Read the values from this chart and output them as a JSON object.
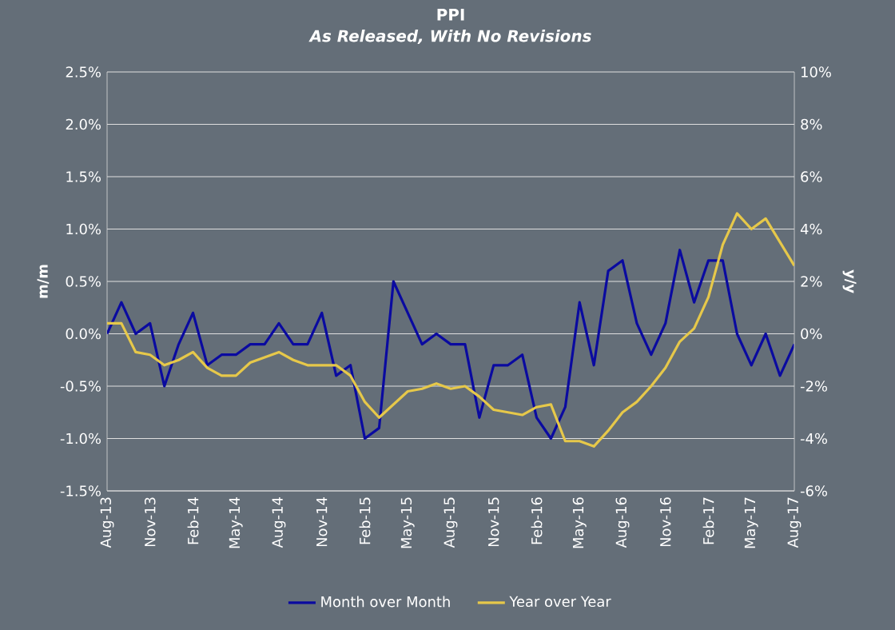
{
  "chart_data": {
    "type": "line",
    "title": "PPI",
    "subtitle": "*As Released, With No Revisions*",
    "ylabel": "m/m",
    "y2label": "y/y",
    "categories": [
      "Aug-13",
      null,
      null,
      "Nov-13",
      null,
      null,
      "Feb-14",
      null,
      null,
      "May-14",
      null,
      null,
      "Aug-14",
      null,
      null,
      "Nov-14",
      null,
      null,
      "Feb-15",
      null,
      null,
      "May-15",
      null,
      null,
      "Aug-15",
      null,
      null,
      "Nov-15",
      null,
      null,
      "Feb-16",
      null,
      null,
      "May-16",
      null,
      null,
      "Aug-16",
      null,
      null,
      "Nov-16",
      null,
      null,
      "Feb-17",
      null,
      null,
      "May-17",
      null,
      null,
      "Aug-17"
    ],
    "series": [
      {
        "name": "Month over Month",
        "color": "#0a0aa0",
        "values": [
          0.0,
          0.3,
          0.0,
          0.1,
          -0.5,
          -0.1,
          0.2,
          -0.3,
          -0.2,
          -0.2,
          -0.1,
          -0.1,
          0.1,
          -0.1,
          -0.1,
          0.2,
          -0.4,
          -0.3,
          -1.0,
          -0.9,
          0.5,
          0.2,
          -0.1,
          0.0,
          -0.1,
          -0.1,
          -0.8,
          -0.3,
          -0.3,
          -0.2,
          -0.8,
          -1.0,
          -0.7,
          0.3,
          -0.3,
          0.6,
          0.7,
          0.1,
          -0.2,
          0.1,
          0.8,
          0.3,
          0.7,
          0.7,
          0.0,
          -0.3,
          0.0,
          -0.4,
          -0.1
        ]
      },
      {
        "name": "Year over Year",
        "color": "#e6c84a",
        "axis": "y2",
        "values": [
          0.4,
          0.4,
          -0.7,
          -0.8,
          -1.2,
          -1.0,
          -0.7,
          -1.3,
          -1.6,
          -1.6,
          -1.1,
          -0.9,
          -0.7,
          -1.0,
          -1.2,
          -1.2,
          -1.2,
          -1.6,
          -2.6,
          -3.2,
          -2.7,
          -2.2,
          -2.1,
          -1.9,
          -2.1,
          -2.0,
          -2.4,
          -2.9,
          -3.0,
          -3.1,
          -2.8,
          -2.7,
          -4.1,
          -4.1,
          -4.3,
          -3.7,
          -3.0,
          -2.6,
          -2.0,
          -1.3,
          -0.3,
          0.2,
          1.4,
          3.4,
          4.6,
          4.0,
          4.4,
          3.5,
          2.6
        ]
      }
    ],
    "ylim": [
      -1.5,
      2.5
    ],
    "yticks": [
      {
        "value": -1.5,
        "label": "-1.5%"
      },
      {
        "value": -1.0,
        "label": "-1.0%"
      },
      {
        "value": -0.5,
        "label": "-0.5%"
      },
      {
        "value": 0.0,
        "label": "0.0%"
      },
      {
        "value": 0.5,
        "label": "0.5%"
      },
      {
        "value": 1.0,
        "label": "1.0%"
      },
      {
        "value": 1.5,
        "label": "1.5%"
      },
      {
        "value": 2.0,
        "label": "2.0%"
      },
      {
        "value": 2.5,
        "label": "2.5%"
      }
    ],
    "y2lim": [
      -6,
      10
    ],
    "y2ticks": [
      {
        "value": -6,
        "label": "-6%"
      },
      {
        "value": -4,
        "label": "-4%"
      },
      {
        "value": -2,
        "label": "-2%"
      },
      {
        "value": 0,
        "label": "0%"
      },
      {
        "value": 2,
        "label": "2%"
      },
      {
        "value": 4,
        "label": "4%"
      },
      {
        "value": 6,
        "label": "6%"
      },
      {
        "value": 8,
        "label": "8%"
      },
      {
        "value": 10,
        "label": "10%"
      }
    ],
    "grid": "y",
    "legend": "bottom",
    "line_style": "solid"
  }
}
